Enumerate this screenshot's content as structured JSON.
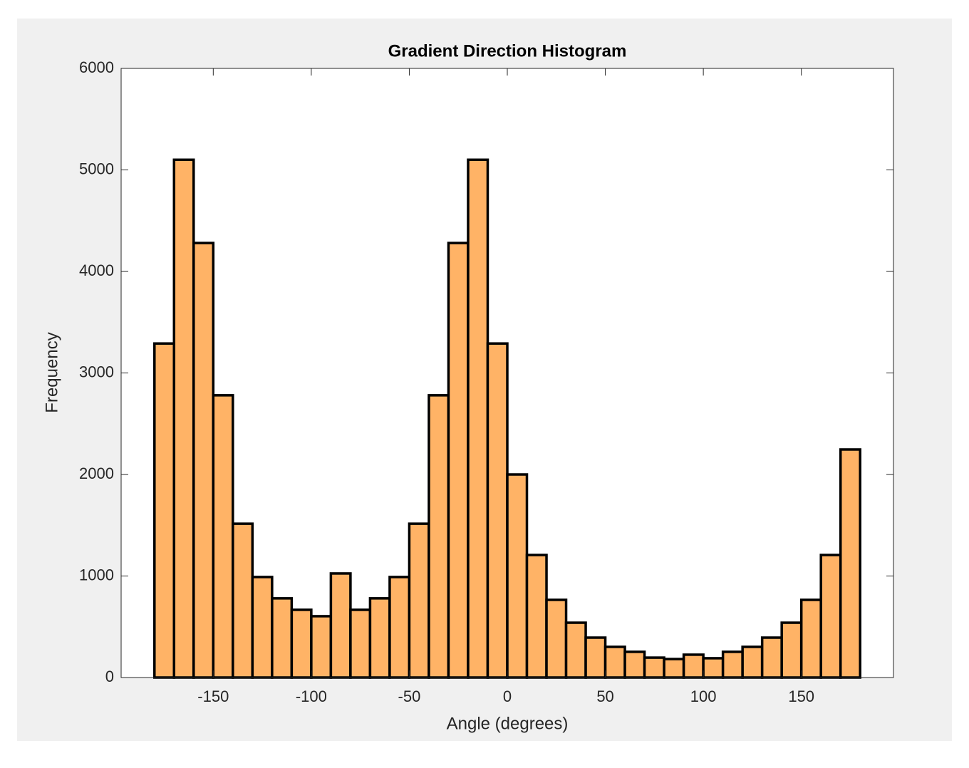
{
  "chart_data": {
    "type": "histogram",
    "title": "Gradient Direction Histogram",
    "x_label": "Angle (degrees)",
    "y_label": "Frequency",
    "bins": [
      -180,
      -170,
      -160,
      -150,
      -140,
      -130,
      -120,
      -110,
      -100,
      -90,
      -80,
      -70,
      -60,
      -50,
      -40,
      -30,
      -20,
      -10,
      0,
      10,
      20,
      30,
      40,
      50,
      60,
      70,
      80,
      90,
      100,
      110,
      120,
      130,
      140,
      150,
      160,
      170,
      180
    ],
    "counts": [
      3290,
      5100,
      4280,
      2780,
      1515,
      990,
      780,
      667,
      604,
      1025,
      667,
      780,
      990,
      1515,
      2780,
      4280,
      5100,
      3290,
      2000,
      1207,
      765,
      540,
      393,
      302,
      253,
      196,
      182,
      225,
      190,
      253,
      302,
      393,
      540,
      765,
      1207,
      2246
    ],
    "color": "#ffb366",
    "edge_color": "#000000",
    "xlim": [
      -197,
      197
    ],
    "xticks": [
      -150,
      -100,
      -50,
      0,
      50,
      100,
      150
    ],
    "ylim": [
      0,
      6000
    ],
    "yticks": [
      0,
      1000,
      2000,
      3000,
      4000,
      5000,
      6000
    ]
  }
}
